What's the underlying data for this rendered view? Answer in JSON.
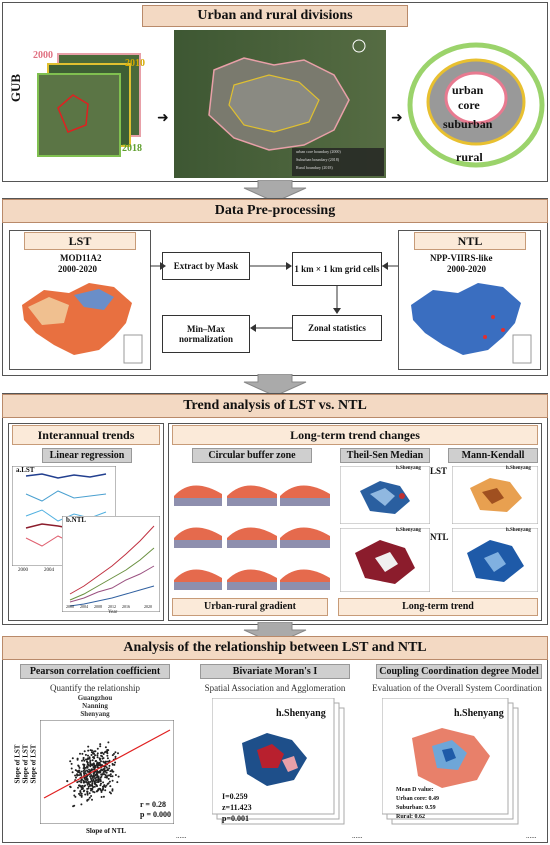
{
  "section1": {
    "title": "Urban and rural divisions",
    "gub": "GUB",
    "years": [
      "2000",
      "2010",
      "2018"
    ],
    "legend": [
      "urban core boundary (2000)",
      "Suburban boundary (2018)",
      "Rural boundary (2018)"
    ],
    "rings": {
      "urban": "urban",
      "core": "core",
      "suburban": "suburban",
      "rural": "rural"
    }
  },
  "section2": {
    "title": "Data Pre-processing",
    "lst_title": "LST",
    "lst_source": "MOD11A2",
    "lst_years": "2000-2020",
    "ntl_title": "NTL",
    "ntl_source": "NPP-VIIRS-like",
    "ntl_years": "2000-2020",
    "steps": {
      "extract": "Extract by Mask",
      "grid": "1 km × 1 km grid cells",
      "zonal": "Zonal statistics",
      "minmax": "Min–Max normalization"
    }
  },
  "section3": {
    "title": "Trend analysis of LST vs. NTL",
    "interannual": "Interannual trends",
    "linear": "Linear regression",
    "a_label": "a.LST",
    "b_label": "b.NTL",
    "longterm_changes": "Long-term trend changes",
    "buffer": "Circular buffer zone",
    "gradient": "Urban-rural gradient",
    "theil": "Theil-Sen Median",
    "mk": "Mann-Kendall",
    "city": "h.Shenyang",
    "lst": "LST",
    "ntl": "NTL",
    "longterm_trend": "Long-term trend",
    "year_axis": "Year",
    "lst_years": [
      "2000",
      "2004"
    ],
    "ntl_years": [
      "2000",
      "2004",
      "2008",
      "2012",
      "2016",
      "2020"
    ]
  },
  "section4": {
    "title": "Analysis of the relationship between LST and NTL",
    "pearson": "Pearson correlation coefficient",
    "pearson_sub": "Quantify the relationship",
    "cities": [
      "Guangzhou",
      "Nanning",
      "Shenyang"
    ],
    "ylabels": [
      "Slope of LST",
      "Slope of LST",
      "Slope of LST"
    ],
    "xlabel": "Slope of NTL",
    "r": "r = 0.28",
    "p": "p = 0.000",
    "moran": "Bivariate Moran's I",
    "moran_sub": "Spatial Association and Agglomeration",
    "moran_city": "h.Shenyang",
    "moran_i": "I=0.259",
    "moran_z": "z=11.423",
    "moran_p": "p=0.001",
    "ccd": "Coupling Coordination degree Model",
    "ccd_sub": "Evaluation of the Overall System Coordination",
    "ccd_city": "h.Shenyang",
    "mean_d": "Mean D value:",
    "urban_core": "Urban core:  0.49",
    "suburban": "Suburban:  0.59",
    "rural": "Rural:  0.62",
    "ellipsis": "......"
  }
}
